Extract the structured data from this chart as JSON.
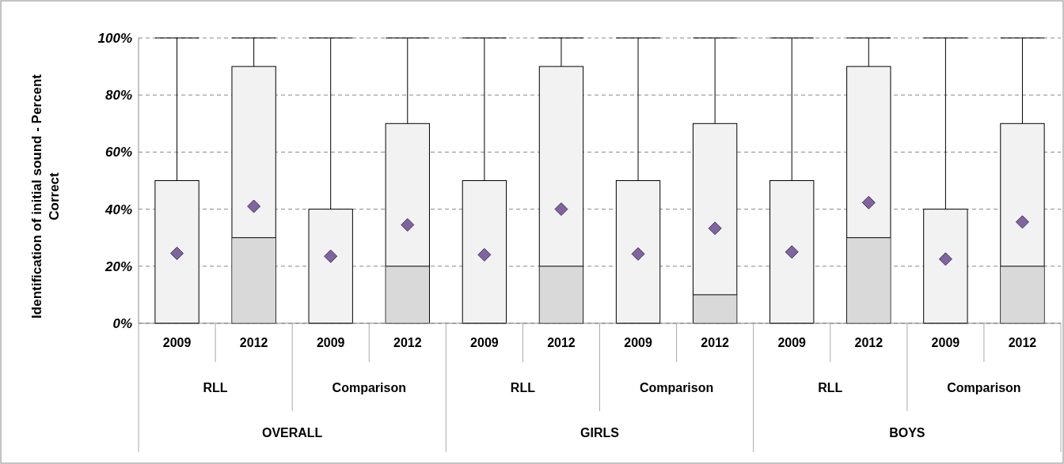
{
  "chart_data": {
    "type": "box",
    "ylabel": "Identification of initial sound - Percent Correct",
    "categories": [
      "2009",
      "2012",
      "2009",
      "2012",
      "2009",
      "2012",
      "2009",
      "2012",
      "2009",
      "2012",
      "2009",
      "2012"
    ],
    "annotations": [
      "RLL",
      "Comparison",
      "RLL",
      "Comparison",
      "RLL",
      "Comparison",
      "OVERALL",
      "GIRLS",
      "BOYS"
    ],
    "series": [
      {
        "color": "#f2f2f2",
        "boxes": [
          {
            "low": 0,
            "q1": 0,
            "median": 0,
            "q3": 50,
            "high": 100
          },
          {
            "low": 0,
            "q1": 0,
            "median": 30,
            "q3": 90,
            "high": 100
          },
          {
            "low": 0,
            "q1": 0,
            "median": 0,
            "q3": 40,
            "high": 100
          },
          {
            "low": 0,
            "q1": 0,
            "median": 20,
            "q3": 70,
            "high": 100
          },
          {
            "low": 0,
            "q1": 0,
            "median": 0,
            "q3": 50,
            "high": 100
          },
          {
            "low": 0,
            "q1": 0,
            "median": 20,
            "q3": 90,
            "high": 100
          },
          {
            "low": 0,
            "q1": 0,
            "median": 0,
            "q3": 50,
            "high": 100
          },
          {
            "low": 0,
            "q1": 0,
            "median": 10,
            "q3": 70,
            "high": 100
          },
          {
            "low": 0,
            "q1": 0,
            "median": 0,
            "q3": 50,
            "high": 100
          },
          {
            "low": 0,
            "q1": 0,
            "median": 30,
            "q3": 90,
            "high": 100
          },
          {
            "low": 0,
            "q1": 0,
            "median": 0,
            "q3": 40,
            "high": 100
          },
          {
            "low": 0,
            "q1": 0,
            "median": 20,
            "q3": 70,
            "high": 100
          }
        ]
      },
      {
        "type": "scatter",
        "color": "#8064a2",
        "values": [
          24.5,
          41,
          23.5,
          34.5,
          24,
          40,
          24.3,
          33.3,
          25,
          42.3,
          22.5,
          35.5
        ]
      }
    ],
    "marker": "diamond",
    "ylim": [
      0,
      100
    ],
    "yticks": [
      {
        "value": 0,
        "label": "0%"
      },
      {
        "value": 20,
        "label": "20%"
      },
      {
        "value": 40,
        "label": "40%"
      },
      {
        "value": 60,
        "label": "60%"
      },
      {
        "value": 80,
        "label": "80%"
      },
      {
        "value": 100,
        "label": "100%"
      }
    ],
    "grid": "y"
  }
}
